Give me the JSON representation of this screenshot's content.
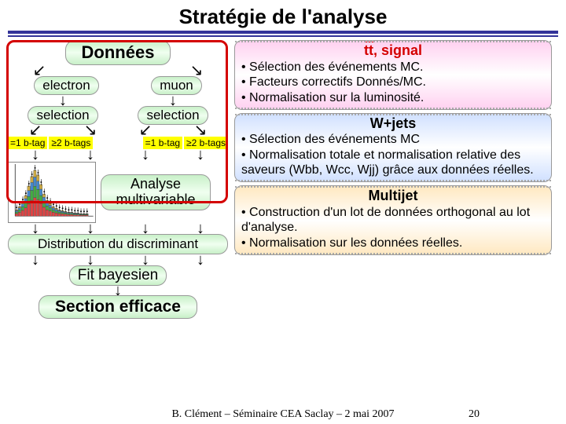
{
  "title": "Stratégie de l'analyse",
  "left": {
    "donnees": "Données",
    "electron": "electron",
    "muon": "muon",
    "selection": "selection",
    "tag1": "=1 b-tag",
    "tag2": "≥2 b-tags",
    "analyse": "Analyse multivariable",
    "distribution": "Distribution du discriminant",
    "fit": "Fit bayesien",
    "section": "Section efficace"
  },
  "right": {
    "box1": {
      "title_prefix": "tt",
      "title_suffix": ", signal",
      "lines": [
        "• Sélection des événements MC.",
        "• Facteurs correctifs Donnés/MC.",
        "• Normalisation sur la luminosité."
      ]
    },
    "box2": {
      "title": "W+jets",
      "lines": [
        "• Sélection des événements MC",
        "• Normalisation totale et normalisation relative des saveurs (Wbb, Wcc, Wjj) grâce aux données réelles."
      ]
    },
    "box3": {
      "title": "Multijet",
      "lines": [
        "• Construction d'un lot de données orthogonal au lot d'analyse.",
        "• Normalisation sur les données réelles."
      ]
    }
  },
  "footer": {
    "text": "B. Clément – Séminaire CEA Saclay – 2 mai 2007",
    "page": "20"
  },
  "colors": {
    "rule": "#333399",
    "red": "#d40000",
    "yellow": "#ffff00",
    "green_grad": [
      "#c8f0c8",
      "#f0fff0"
    ],
    "pink_grad": [
      "#ffd0f0",
      "#ffffff"
    ],
    "blue_grad": [
      "#d0e0ff",
      "#ffffff"
    ],
    "orange_grad": [
      "#ffe8c0",
      "#ffffff"
    ]
  },
  "histogram": {
    "bars": [
      8,
      12,
      18,
      26,
      38,
      50,
      58,
      52,
      40,
      28,
      20,
      16,
      12,
      10,
      8,
      7,
      6,
      5,
      5,
      4,
      4,
      3,
      3,
      3
    ],
    "colors": [
      "#d44",
      "#4a4",
      "#48c",
      "#ca4"
    ]
  }
}
